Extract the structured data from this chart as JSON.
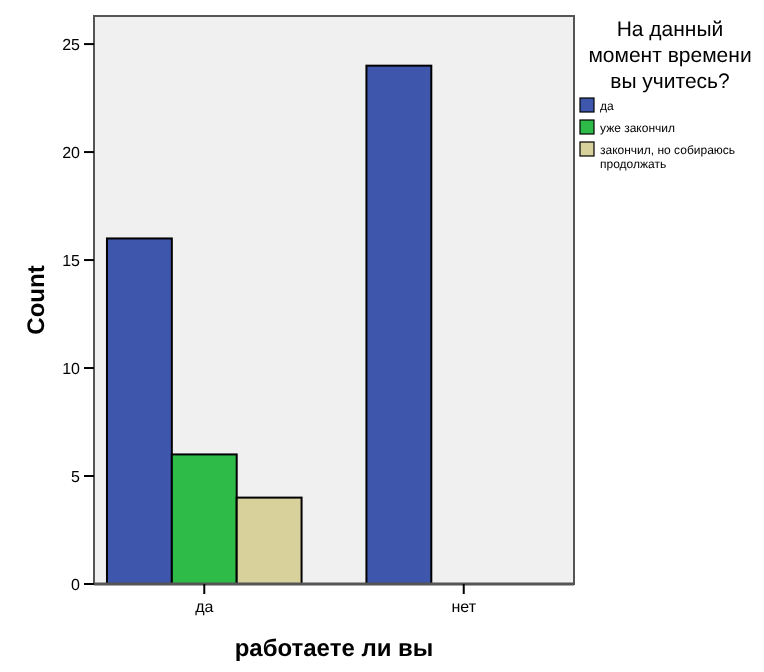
{
  "chart_data": {
    "type": "bar",
    "xlabel": "работаете ли вы",
    "ylabel": "Count",
    "legend_title": "На данный момент времени вы учитесь?",
    "legend": "right",
    "categories": [
      "да",
      "нет"
    ],
    "ylim": [
      0,
      26.3
    ],
    "yticks": [
      0,
      5,
      10,
      15,
      20,
      25
    ],
    "grid": false,
    "series": [
      {
        "name": "да",
        "color": "#3e56ab",
        "values": [
          16,
          24
        ]
      },
      {
        "name": "уже закончил",
        "color": "#2fbb48",
        "values": [
          6,
          0
        ]
      },
      {
        "name": "закончил, но собираюсь продолжать",
        "color": "#d8d19b",
        "values": [
          4,
          0
        ]
      }
    ]
  }
}
